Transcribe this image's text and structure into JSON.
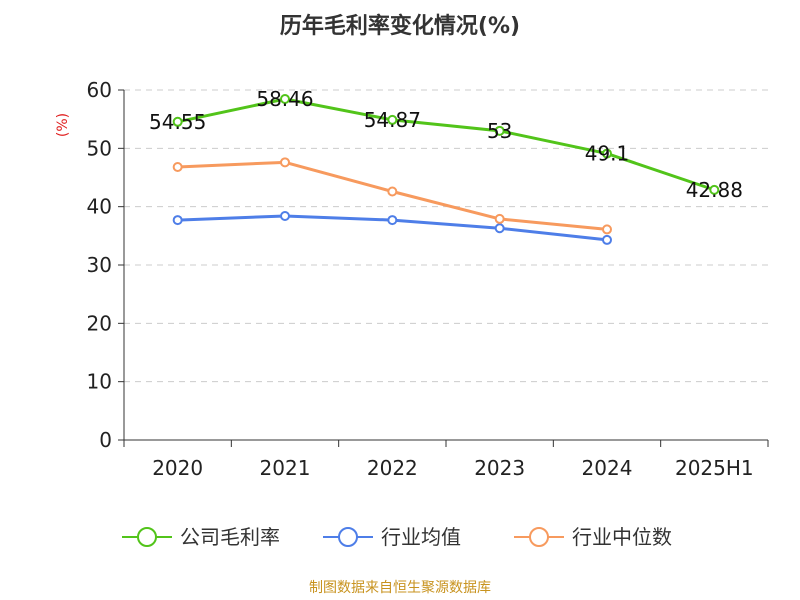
{
  "chart_data": {
    "type": "line",
    "title": "历年毛利率变化情况(%)",
    "unit_label": "(%)",
    "categories": [
      "2020",
      "2021",
      "2022",
      "2023",
      "2024",
      "2025H1"
    ],
    "ylim": [
      0,
      60
    ],
    "yticks": [
      0,
      10,
      20,
      30,
      40,
      50,
      60
    ],
    "grid": true,
    "legend_position": "bottom",
    "series": [
      {
        "name": "公司毛利率",
        "color": "#52c41a",
        "values": [
          54.55,
          58.46,
          54.87,
          53,
          49.1,
          42.88
        ],
        "labels": [
          "54.55",
          "58.46",
          "54.87",
          "53",
          "49.1",
          "42.88"
        ]
      },
      {
        "name": "行业均值",
        "color": "#4e7ee8",
        "values": [
          37.7,
          38.4,
          37.7,
          36.3,
          34.3,
          null
        ]
      },
      {
        "name": "行业中位数",
        "color": "#f79a5e",
        "values": [
          46.8,
          47.6,
          42.6,
          37.9,
          36.1,
          null
        ]
      }
    ]
  },
  "colors": {
    "unit": "#e02020",
    "source": "#c8931f",
    "grid": "#cccccc",
    "axis": "#333333"
  },
  "footer": {
    "source": "制图数据来自恒生聚源数据库"
  }
}
